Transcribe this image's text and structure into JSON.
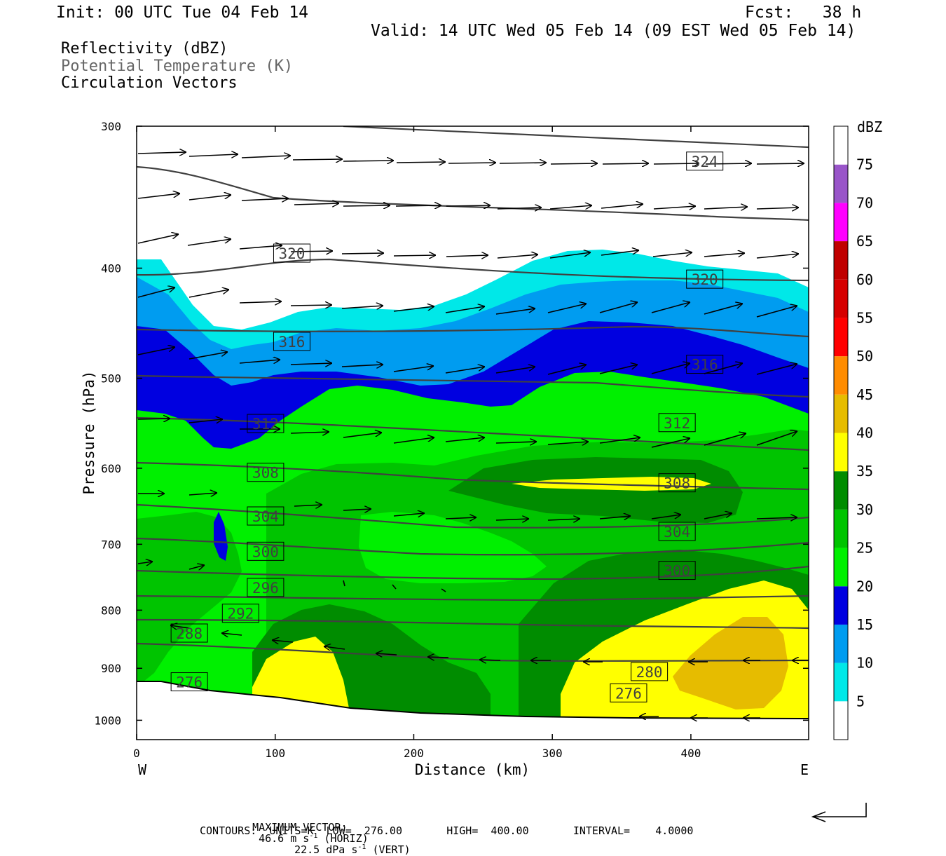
{
  "header": {
    "init": "Init: 00 UTC Tue 04 Feb 14",
    "fcst": "Fcst:   38 h",
    "valid": "Valid: 14 UTC Wed 05 Feb 14 (09 EST Wed 05 Feb 14)"
  },
  "fields": {
    "reflectivity": "Reflectivity (dBZ)",
    "theta": "Potential Temperature (K)",
    "vectors": "Circulation Vectors"
  },
  "footer": {
    "max_vector_label": "MAXIMUM VECTOR:",
    "horiz_value": "46.6 m s",
    "horiz_tag": " (HORIZ)",
    "vert_value": "22.5 dPa s",
    "vert_tag": " (VERT)",
    "exponent": "-1",
    "contours": "CONTOURS:  UNITS=K  LOW=  276.00       HIGH=  400.00       INTERVAL=    4.0000"
  },
  "colors": {
    "dbz_5": "#00e8e8",
    "dbz_10": "#009cf0",
    "dbz_15": "#0000e0",
    "dbz_20": "#00f000",
    "dbz_25": "#00c400",
    "dbz_30": "#008c00",
    "dbz_35": "#ffff00",
    "dbz_40": "#e6bc00",
    "dbz_45": "#ff8c00",
    "dbz_50": "#ff0000",
    "dbz_55": "#d60000",
    "dbz_60": "#c00000",
    "dbz_65": "#ff00ff",
    "dbz_70": "#9955c9",
    "isentrope": "#404040"
  },
  "chart_data": {
    "type": "heatmap",
    "xlabel": "Distance (km)",
    "ylabel": "Pressure (hPa)",
    "xlim": [
      0,
      485
    ],
    "ylim": [
      300,
      1040
    ],
    "y_log": true,
    "x_ticks": [
      "0",
      "100",
      "200",
      "300",
      "400"
    ],
    "y_ticks": [
      "300",
      "400",
      "500",
      "600",
      "700",
      "800",
      "900",
      "1000"
    ],
    "x_end_labels": {
      "left": "W",
      "right": "E"
    },
    "colorbar": {
      "units": "dBZ",
      "levels": [
        "5",
        "10",
        "15",
        "20",
        "25",
        "30",
        "35",
        "40",
        "45",
        "50",
        "55",
        "60",
        "65",
        "70",
        "75"
      ]
    },
    "contours": {
      "units": "K",
      "low": 276.0,
      "high": 400.0,
      "interval": 4.0,
      "labels": [
        {
          "value": "324",
          "x": 410,
          "p": 322
        },
        {
          "value": "320",
          "x": 112,
          "p": 388
        },
        {
          "value": "320",
          "x": 410,
          "p": 409
        },
        {
          "value": "316",
          "x": 112,
          "p": 464
        },
        {
          "value": "316",
          "x": 410,
          "p": 486
        },
        {
          "value": "312",
          "x": 93,
          "p": 548
        },
        {
          "value": "312",
          "x": 390,
          "p": 547
        },
        {
          "value": "308",
          "x": 93,
          "p": 605
        },
        {
          "value": "308",
          "x": 390,
          "p": 618
        },
        {
          "value": "304",
          "x": 93,
          "p": 661
        },
        {
          "value": "304",
          "x": 390,
          "p": 682
        },
        {
          "value": "300",
          "x": 93,
          "p": 710
        },
        {
          "value": "300",
          "x": 390,
          "p": 738
        },
        {
          "value": "296",
          "x": 93,
          "p": 764
        },
        {
          "value": "292",
          "x": 75,
          "p": 805
        },
        {
          "value": "288",
          "x": 38,
          "p": 838
        },
        {
          "value": "280",
          "x": 370,
          "p": 906
        },
        {
          "value": "276",
          "x": 38,
          "p": 925
        },
        {
          "value": "276",
          "x": 355,
          "p": 946
        }
      ]
    },
    "max_vector": {
      "horizontal_m_s": 46.6,
      "vertical_dPa_s": 22.5
    }
  }
}
